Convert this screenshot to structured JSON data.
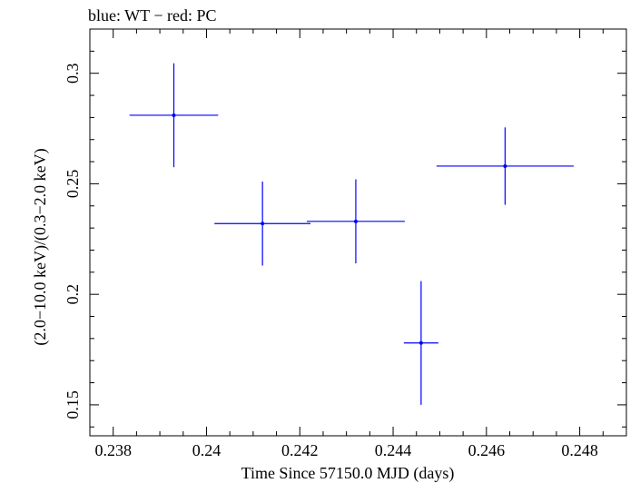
{
  "chart_data": {
    "type": "scatter",
    "title": "blue: WT − red: PC",
    "xlabel": "Time Since 57150.0 MJD (days)",
    "ylabel": "(2.0−10.0 keV)/(0.3−2.0 keV)",
    "xlim": [
      0.2375,
      0.249
    ],
    "ylim": [
      0.136,
      0.32
    ],
    "x_ticks": [
      0.238,
      0.24,
      0.242,
      0.244,
      0.246,
      0.248
    ],
    "x_tick_labels": [
      "0.238",
      "0.24",
      "0.242",
      "0.244",
      "0.246",
      "0.248"
    ],
    "y_ticks": [
      0.15,
      0.2,
      0.25,
      0.3
    ],
    "y_tick_labels": [
      "0.15",
      "0.2",
      "0.25",
      "0.3"
    ],
    "grid": false,
    "series": [
      {
        "color": "#0000ff",
        "points": [
          {
            "x": 0.2393,
            "xerr": 0.00095,
            "y": 0.281,
            "yerr": 0.0235
          },
          {
            "x": 0.2412,
            "xerr": 0.00103,
            "y": 0.232,
            "yerr": 0.019
          },
          {
            "x": 0.2432,
            "xerr": 0.00105,
            "y": 0.233,
            "yerr": 0.019
          },
          {
            "x": 0.2446,
            "xerr": 0.00037,
            "y": 0.178,
            "yerr": 0.028
          },
          {
            "x": 0.2464,
            "xerr": 0.00147,
            "y": 0.258,
            "yerr": 0.0175
          }
        ]
      }
    ]
  }
}
